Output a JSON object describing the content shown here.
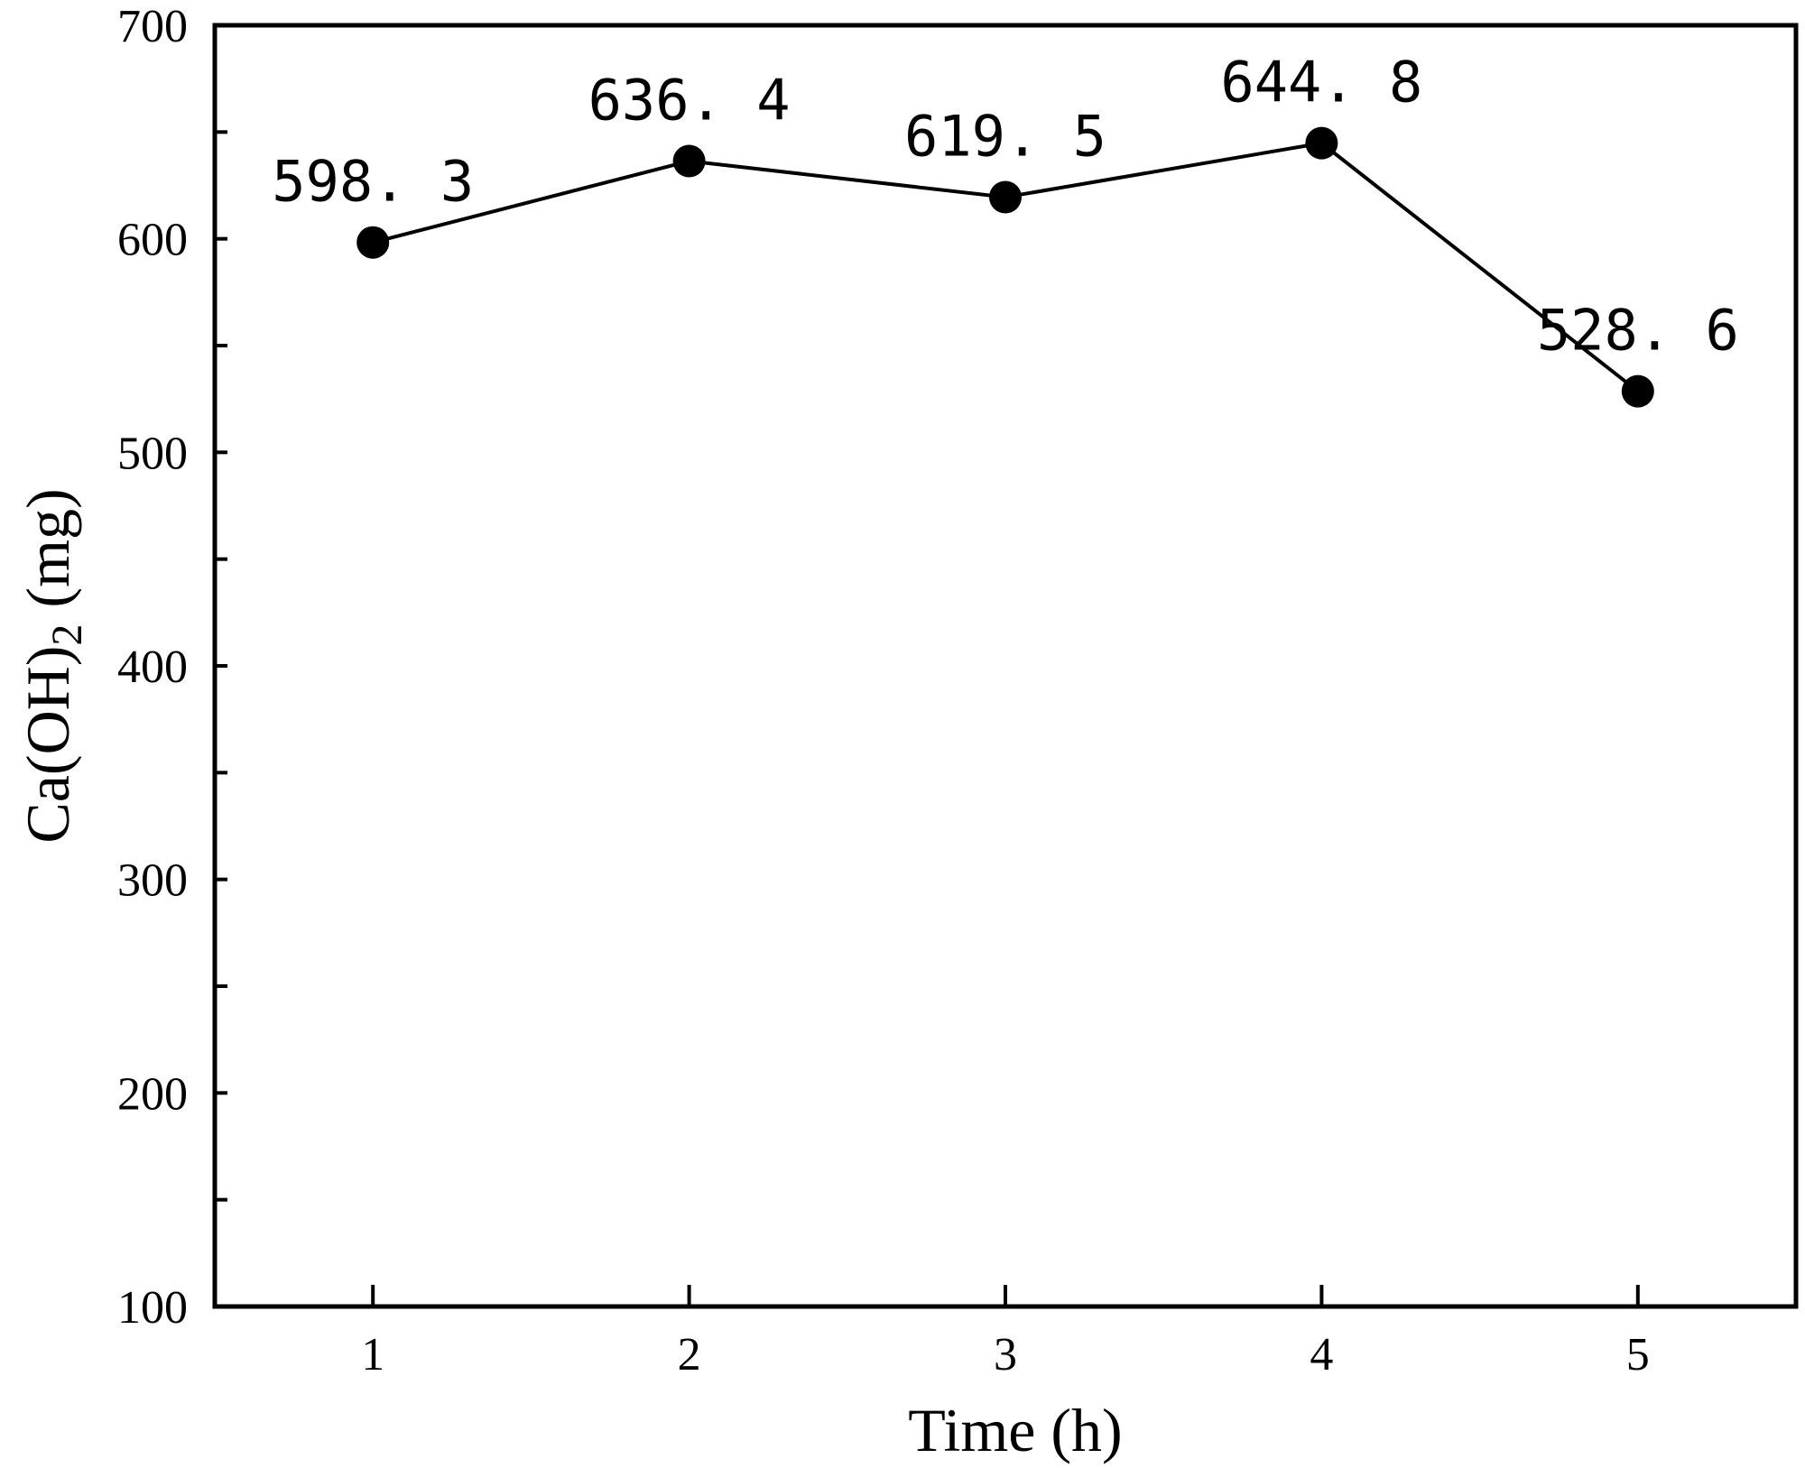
{
  "chart_data": {
    "type": "line",
    "x": [
      1,
      2,
      3,
      4,
      5
    ],
    "series": [
      {
        "values": [
          598.3,
          636.4,
          619.5,
          644.8,
          528.6
        ]
      }
    ],
    "data_labels": [
      "598. 3",
      "636. 4",
      "619. 5",
      "644. 8",
      "528. 6"
    ],
    "xlabel": "Time (h)",
    "ylabel": "Ca(OH)",
    "ylabel_subscript": "2",
    "ylabel_unit": "(mg)",
    "xlim": [
      0.5,
      5.5
    ],
    "ylim": [
      100,
      700
    ],
    "x_ticks": [
      1,
      2,
      3,
      4,
      5
    ],
    "x_tick_labels": [
      "1",
      "2",
      "3",
      "4",
      "5"
    ],
    "y_ticks": [
      100,
      200,
      300,
      400,
      500,
      600,
      700
    ],
    "y_tick_labels": [
      "100",
      "200",
      "300",
      "400",
      "500",
      "600",
      "700"
    ],
    "y_minor_ticks": [
      150,
      250,
      350,
      450,
      550,
      650
    ],
    "grid": false,
    "legend": false,
    "line_color": "#000000",
    "marker": "filled-circle"
  }
}
